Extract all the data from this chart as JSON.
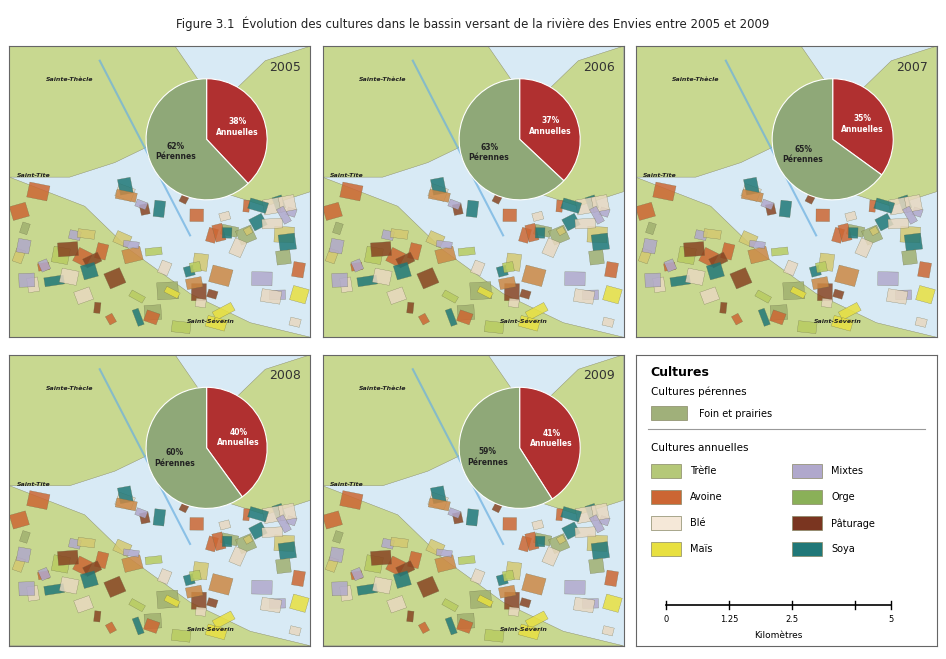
{
  "title": "Figure 3.1  Évolution des cultures dans le bassin versant de la rivière des Envies entre 2005 et 2009",
  "years": [
    "2005",
    "2006",
    "2007",
    "2008",
    "2009"
  ],
  "pie_data": {
    "2005": {
      "annuelles": 38,
      "perennes": 62
    },
    "2006": {
      "annuelles": 37,
      "perennes": 63
    },
    "2007": {
      "annuelles": 35,
      "perennes": 65
    },
    "2008": {
      "annuelles": 40,
      "perennes": 60
    },
    "2009": {
      "annuelles": 41,
      "perennes": 59
    }
  },
  "color_annuelles": "#b03030",
  "color_perennes": "#8fa878",
  "legend": {
    "title": "Cultures",
    "perennes_header": "Cultures pérennes",
    "annuelles_header": "Cultures annuelles",
    "perennes_items": [
      {
        "label": "Foin et prairies",
        "color": "#a0b07a"
      }
    ],
    "annuelles_left": [
      {
        "label": "Trèfle",
        "color": "#b5c878"
      },
      {
        "label": "Avoine",
        "color": "#cc6633"
      },
      {
        "label": "Blé",
        "color": "#f5e8d8"
      },
      {
        "label": "Maïs",
        "color": "#e8e040"
      }
    ],
    "annuelles_right": [
      {
        "label": "Mixtes",
        "color": "#b0a8cc"
      },
      {
        "label": "Orge",
        "color": "#8ab058"
      },
      {
        "label": "Pâturage",
        "color": "#7a3520"
      },
      {
        "label": "Soya",
        "color": "#207878"
      }
    ]
  },
  "scalebar": {
    "labels": [
      "0",
      "1.25",
      "2.5",
      "",
      "5"
    ],
    "unit": "Kilomètres"
  },
  "map_bg_color": "#e8f0e0",
  "panel_border_color": "#666666",
  "background_color": "#ffffff"
}
